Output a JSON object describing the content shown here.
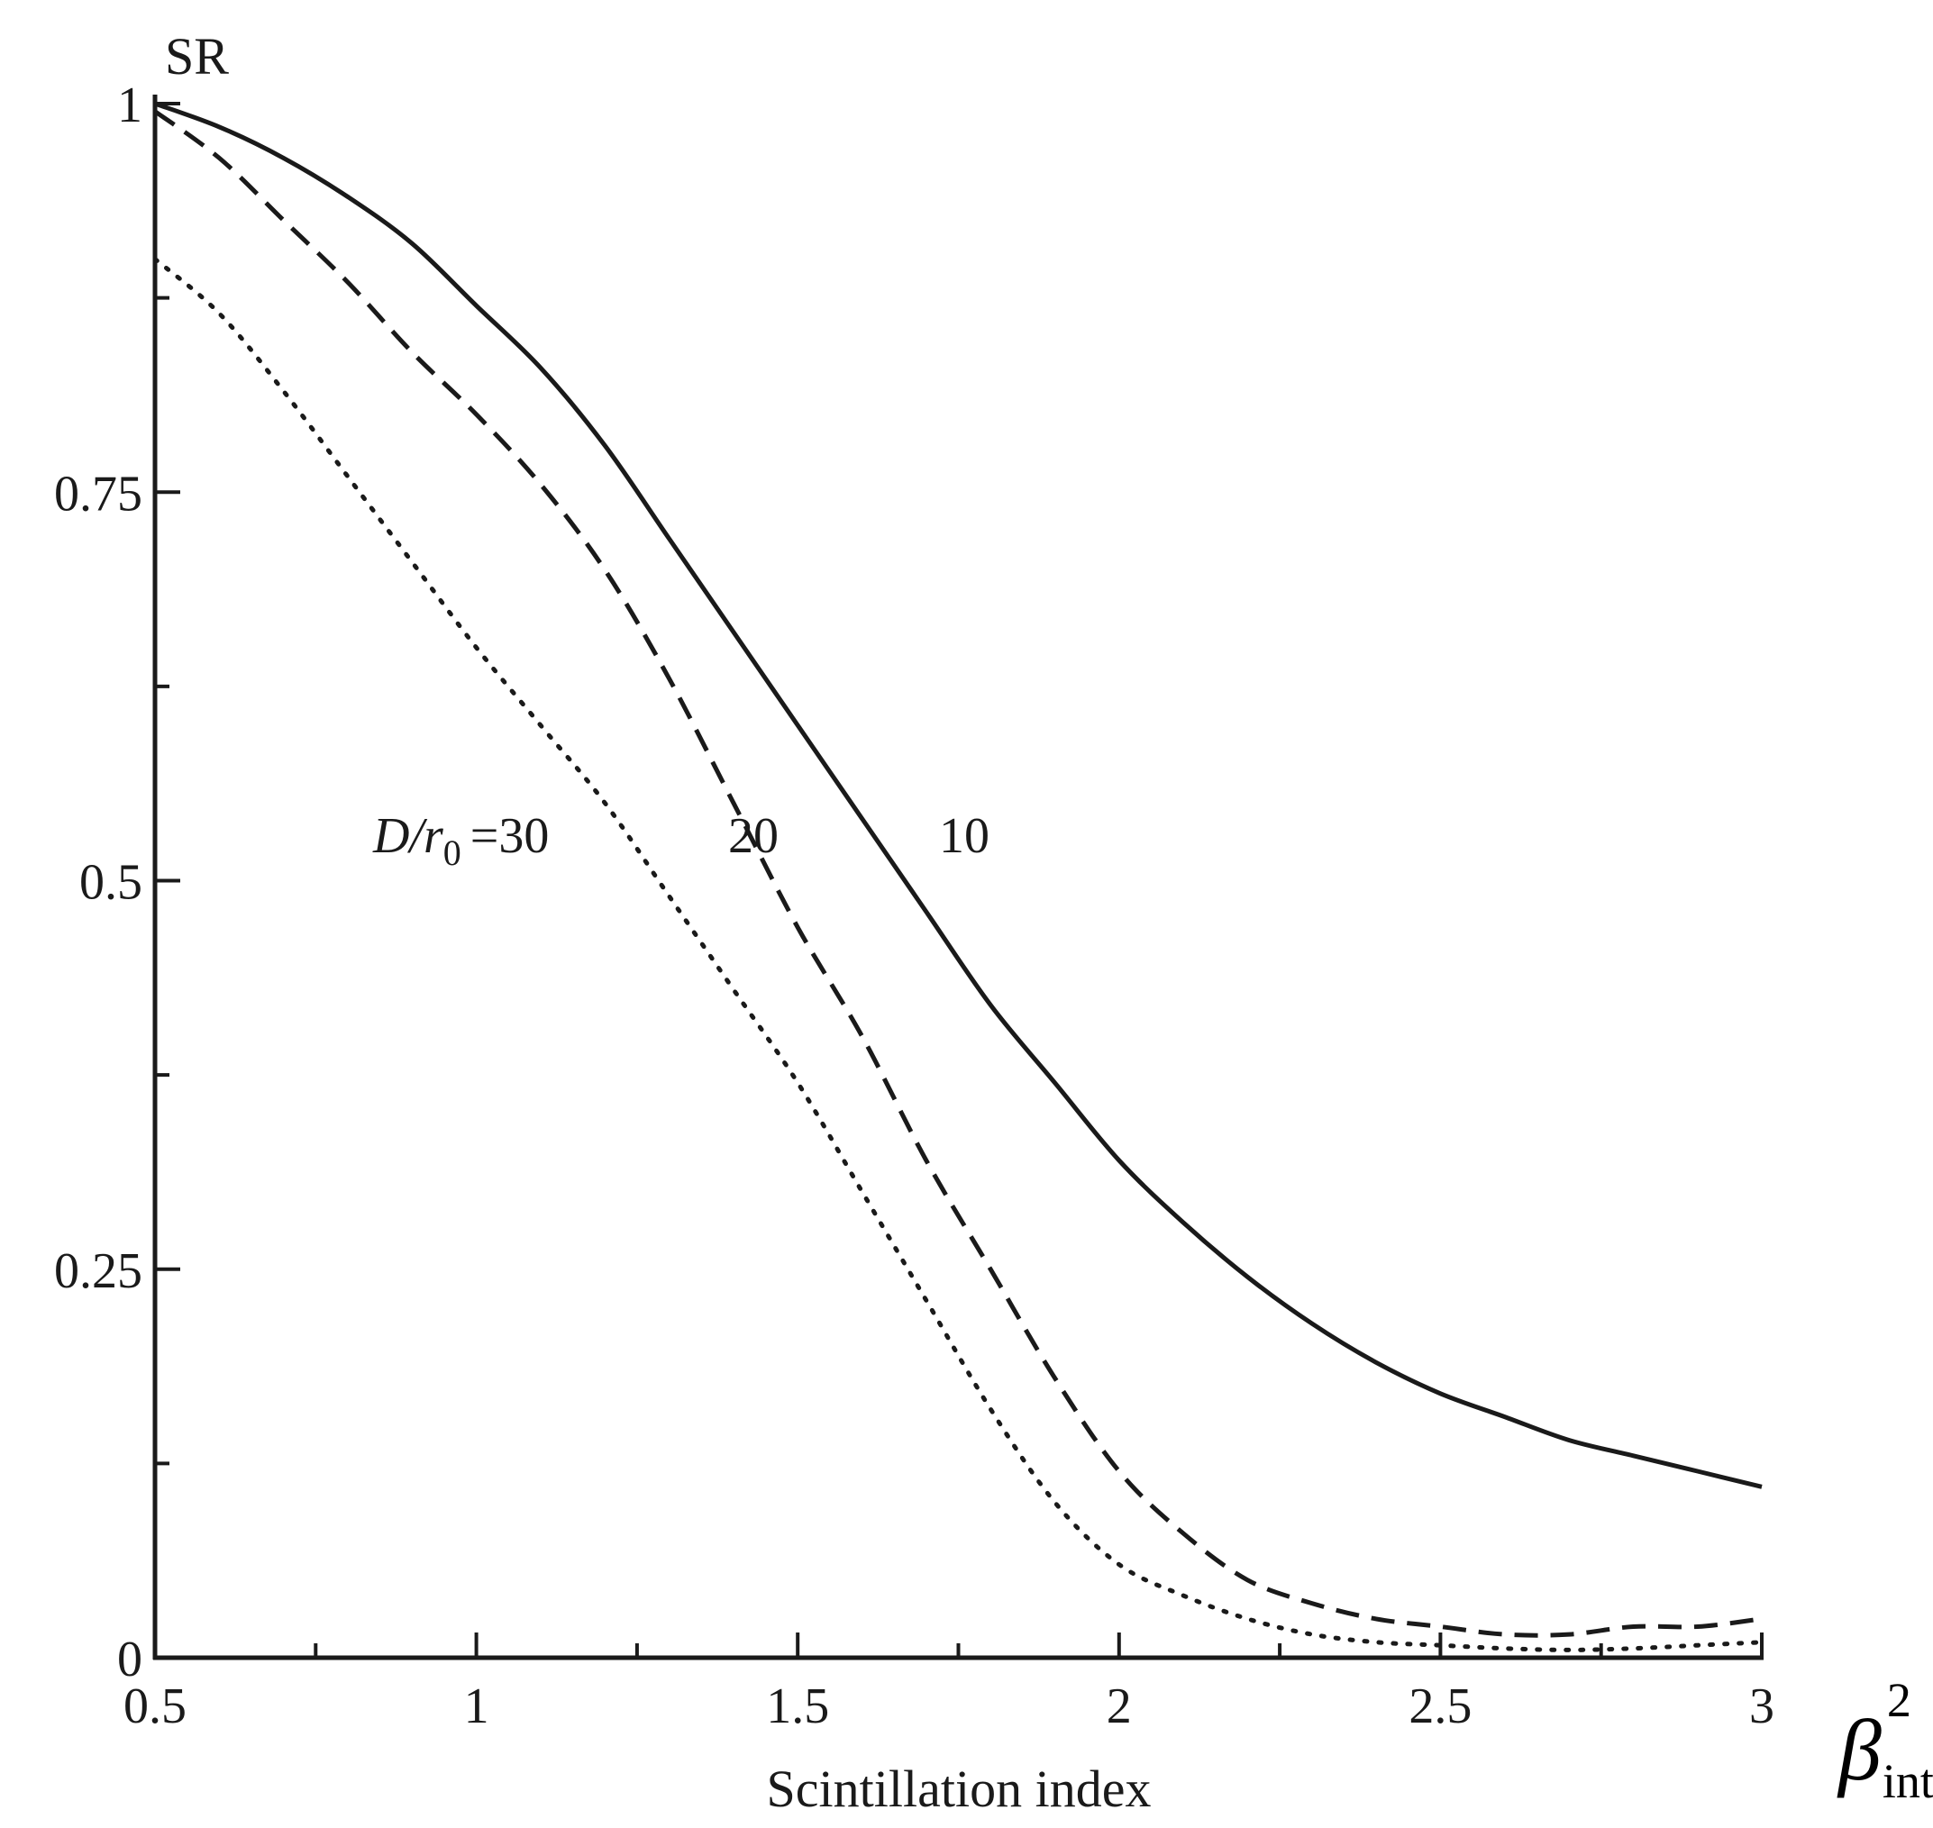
{
  "chart_data": {
    "type": "line",
    "ylabel": "SR",
    "xlabel": "Scintillation index",
    "x_symbol": {
      "base": "β",
      "sup": "2",
      "sub": "int"
    },
    "xlim": [
      0.5,
      3
    ],
    "ylim": [
      0,
      1
    ],
    "x_ticks": [
      0.5,
      1,
      1.5,
      2,
      2.5,
      3
    ],
    "x_tick_labels": [
      "0.5",
      "1",
      "1.5",
      "2",
      "2.5",
      "3"
    ],
    "x_minor_ticks": [
      0.75,
      1.25,
      1.75,
      2.25,
      2.75
    ],
    "y_ticks": [
      0,
      0.25,
      0.5,
      0.75,
      1
    ],
    "y_tick_labels": [
      "0",
      "0.25",
      "0.5",
      "0.75",
      "1"
    ],
    "y_minor_ticks": [
      0.125,
      0.375,
      0.625,
      0.875
    ],
    "grid": false,
    "annotation": {
      "prefix": "D/r",
      "sub": "0",
      "eq": "=30"
    },
    "series": [
      {
        "label": "10",
        "style": "solid",
        "x": [
          0.5,
          0.6,
          0.7,
          0.8,
          0.9,
          1.0,
          1.1,
          1.2,
          1.3,
          1.4,
          1.5,
          1.6,
          1.7,
          1.8,
          1.9,
          2.0,
          2.1,
          2.2,
          2.3,
          2.4,
          2.5,
          2.6,
          2.7,
          2.8,
          2.9,
          3.0
        ],
        "values": [
          1.0,
          0.985,
          0.965,
          0.94,
          0.91,
          0.87,
          0.83,
          0.78,
          0.72,
          0.66,
          0.6,
          0.54,
          0.48,
          0.42,
          0.37,
          0.32,
          0.28,
          0.245,
          0.215,
          0.19,
          0.17,
          0.155,
          0.14,
          0.13,
          0.12,
          0.11
        ]
      },
      {
        "label": "20",
        "style": "dashed",
        "x": [
          0.5,
          0.6,
          0.7,
          0.8,
          0.9,
          1.0,
          1.1,
          1.2,
          1.3,
          1.4,
          1.5,
          1.6,
          1.7,
          1.8,
          1.9,
          2.0,
          2.1,
          2.2,
          2.3,
          2.4,
          2.5,
          2.6,
          2.7,
          2.8,
          2.9,
          3.0
        ],
        "values": [
          0.995,
          0.965,
          0.925,
          0.885,
          0.84,
          0.8,
          0.755,
          0.7,
          0.63,
          0.55,
          0.47,
          0.4,
          0.32,
          0.25,
          0.18,
          0.12,
          0.08,
          0.05,
          0.035,
          0.025,
          0.02,
          0.015,
          0.015,
          0.02,
          0.02,
          0.025
        ]
      },
      {
        "label": "30",
        "style": "dotted",
        "x": [
          0.5,
          0.6,
          0.7,
          0.8,
          0.9,
          1.0,
          1.1,
          1.2,
          1.3,
          1.4,
          1.5,
          1.6,
          1.7,
          1.8,
          1.9,
          2.0,
          2.1,
          2.2,
          2.3,
          2.4,
          2.5,
          2.6,
          2.7,
          2.8,
          2.9,
          3.0
        ],
        "values": [
          0.9,
          0.865,
          0.815,
          0.76,
          0.705,
          0.65,
          0.6,
          0.55,
          0.49,
          0.43,
          0.37,
          0.3,
          0.23,
          0.16,
          0.1,
          0.06,
          0.04,
          0.025,
          0.015,
          0.01,
          0.008,
          0.006,
          0.005,
          0.006,
          0.008,
          0.01
        ]
      }
    ],
    "label_positions": [
      {
        "series": "30",
        "x": 1.25,
        "y": 0.53
      },
      {
        "series": "20",
        "x": 1.43,
        "y": 0.53
      },
      {
        "series": "10",
        "x": 1.76,
        "y": 0.53
      }
    ]
  }
}
